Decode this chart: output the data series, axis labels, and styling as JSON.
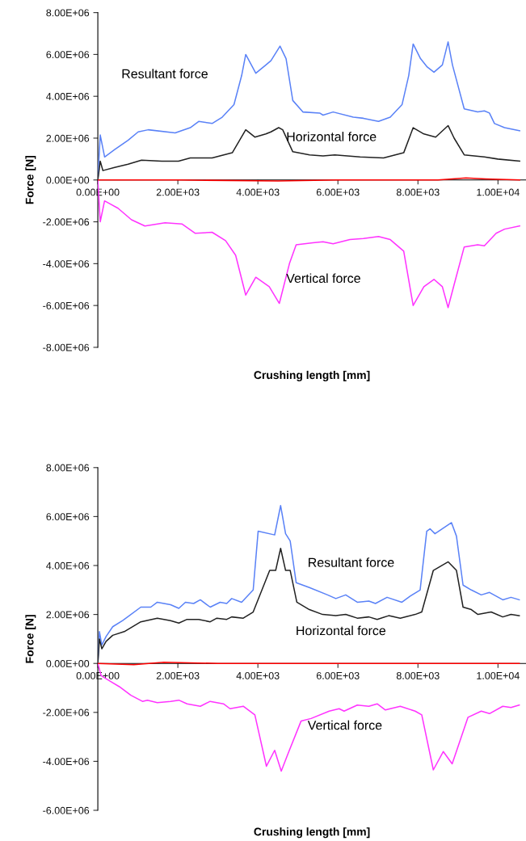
{
  "chart_data": [
    {
      "type": "line",
      "xlabel": "Crushing length [mm]",
      "ylabel": "Force [N]",
      "xlim": [
        0,
        10700
      ],
      "ylim": [
        -8000000.0,
        8000000.0
      ],
      "grid": false,
      "legend": false,
      "marker": "none",
      "line_style": "solid",
      "xticks": [
        {
          "value": 0,
          "label": "0.00E+00"
        },
        {
          "value": 2000,
          "label": "2.00E+03"
        },
        {
          "value": 4000,
          "label": "4.00E+03"
        },
        {
          "value": 6000,
          "label": "6.00E+03"
        },
        {
          "value": 8000,
          "label": "8.00E+03"
        },
        {
          "value": 10000,
          "label": "1.00E+04"
        }
      ],
      "yticks": [
        {
          "value": -8000000.0,
          "label": "-8.00E+06"
        },
        {
          "value": -6000000.0,
          "label": "-6.00E+06"
        },
        {
          "value": -4000000.0,
          "label": "-4.00E+06"
        },
        {
          "value": -2000000.0,
          "label": "-2.00E+06"
        },
        {
          "value": 0,
          "label": "0.00E+00"
        },
        {
          "value": 2000000.0,
          "label": "2.00E+06"
        },
        {
          "value": 4000000.0,
          "label": "4.00E+06"
        },
        {
          "value": 6000000.0,
          "label": "6.00E+06"
        },
        {
          "value": 8000000.0,
          "label": "8.00E+06"
        }
      ],
      "annotations": [
        "Resultant force",
        "Horizontal force",
        "Vertical force"
      ],
      "series": [
        {
          "color": "#5a82f7",
          "x": [
            0,
            60,
            170,
            420,
            756,
            1008,
            1260,
            1932,
            2310,
            2520,
            2856,
            3108,
            3402,
            3595,
            3696,
            3948,
            4200,
            4326,
            4553,
            4704,
            4872,
            5124,
            5544,
            5628,
            5880,
            6384,
            6636,
            7014,
            7308,
            7602,
            7770,
            7880,
            8064,
            8232,
            8400,
            8610,
            8753,
            8862,
            9156,
            9492,
            9660,
            9786,
            9912,
            10164,
            10542
          ],
          "values": [
            0,
            2150000.0,
            1100000.0,
            1450000.0,
            1900000.0,
            2300000.0,
            2400000.0,
            2250000.0,
            2500000.0,
            2800000.0,
            2700000.0,
            3000000.0,
            3600000.0,
            5000000.0,
            6000000.0,
            5100000.0,
            5500000.0,
            5700000.0,
            6400000.0,
            5800000.0,
            3800000.0,
            3250000.0,
            3200000.0,
            3100000.0,
            3250000.0,
            3000000.0,
            2950000.0,
            2800000.0,
            3000000.0,
            3600000.0,
            5000000.0,
            6500000.0,
            5800000.0,
            5400000.0,
            5150000.0,
            5500000.0,
            6600000.0,
            5500000.0,
            3400000.0,
            3250000.0,
            3300000.0,
            3200000.0,
            2700000.0,
            2500000.0,
            2350000.0
          ]
        },
        {
          "color": "#222222",
          "x": [
            0,
            60,
            126,
            420,
            756,
            1092,
            1596,
            2016,
            2310,
            2856,
            3360,
            3696,
            3923,
            4200,
            4326,
            4519,
            4620,
            4872,
            5292,
            5628,
            5922,
            6552,
            7140,
            7644,
            7880,
            8148,
            8442,
            8753,
            8904,
            9156,
            9660,
            9996,
            10542
          ],
          "values": [
            0,
            900000.0,
            450000.0,
            600000.0,
            750000.0,
            950000.0,
            900000.0,
            900000.0,
            1050000.0,
            1050000.0,
            1300000.0,
            2400000.0,
            2050000.0,
            2200000.0,
            2300000.0,
            2500000.0,
            2400000.0,
            1350000.0,
            1200000.0,
            1150000.0,
            1200000.0,
            1100000.0,
            1050000.0,
            1300000.0,
            2500000.0,
            2200000.0,
            2050000.0,
            2600000.0,
            2000000.0,
            1200000.0,
            1100000.0,
            1000000.0,
            900000.0
          ]
        },
        {
          "color": "#ff33ff",
          "x": [
            0,
            60,
            168,
            504,
            840,
            1176,
            1680,
            2100,
            2436,
            2856,
            3192,
            3444,
            3696,
            3948,
            4284,
            4536,
            4788,
            4956,
            5376,
            5628,
            5880,
            6300,
            6636,
            7014,
            7308,
            7644,
            7880,
            8148,
            8400,
            8610,
            8753,
            8904,
            9156,
            9492,
            9660,
            9954,
            10164,
            10542
          ],
          "values": [
            0,
            -2000000.0,
            -1000000.0,
            -1350000.0,
            -1900000.0,
            -2200000.0,
            -2050000.0,
            -2100000.0,
            -2550000.0,
            -2500000.0,
            -2900000.0,
            -3600000.0,
            -5500000.0,
            -4650000.0,
            -5100000.0,
            -5900000.0,
            -4000000.0,
            -3100000.0,
            -3000000.0,
            -2950000.0,
            -3050000.0,
            -2850000.0,
            -2800000.0,
            -2700000.0,
            -2850000.0,
            -3400000.0,
            -6000000.0,
            -5100000.0,
            -4750000.0,
            -5100000.0,
            -6100000.0,
            -5000000.0,
            -3200000.0,
            -3100000.0,
            -3150000.0,
            -2550000.0,
            -2350000.0,
            -2200000.0
          ]
        },
        {
          "color": "#ff0000",
          "x": [
            0,
            2000,
            4500,
            6000,
            8500,
            9200,
            9700,
            10542
          ],
          "values": [
            0,
            0,
            -50000.0,
            0,
            0,
            100000.0,
            50000.0,
            0
          ]
        }
      ]
    },
    {
      "type": "line",
      "xlabel": "Crushing length [mm]",
      "ylabel": "Force [N]",
      "xlim": [
        0,
        10700
      ],
      "ylim": [
        -6000000.0,
        8000000.0
      ],
      "grid": false,
      "legend": false,
      "marker": "none",
      "line_style": "solid",
      "xticks": [
        {
          "value": 0,
          "label": "0.00E+00"
        },
        {
          "value": 2000,
          "label": "2.00E+03"
        },
        {
          "value": 4000,
          "label": "4.00E+03"
        },
        {
          "value": 6000,
          "label": "6.00E+03"
        },
        {
          "value": 8000,
          "label": "8.00E+03"
        },
        {
          "value": 10000,
          "label": "1.00E+04"
        }
      ],
      "yticks": [
        {
          "value": -6000000.0,
          "label": "-6.00E+06"
        },
        {
          "value": -4000000.0,
          "label": "-4.00E+06"
        },
        {
          "value": -2000000.0,
          "label": "-2.00E+06"
        },
        {
          "value": 0,
          "label": "0.00E+00"
        },
        {
          "value": 2000000.0,
          "label": "2.00E+06"
        },
        {
          "value": 4000000.0,
          "label": "4.00E+06"
        },
        {
          "value": 6000000.0,
          "label": "6.00E+06"
        },
        {
          "value": 8000000.0,
          "label": "8.00E+06"
        }
      ],
      "annotations": [
        "Resultant force",
        "Horizontal force",
        "Vertical force"
      ],
      "series": [
        {
          "color": "#5a82f7",
          "x": [
            0,
            40,
            100,
            206,
            372,
            620,
            1074,
            1322,
            1487,
            1817,
            2024,
            2189,
            2395,
            2561,
            2808,
            3056,
            3221,
            3345,
            3593,
            3882,
            4006,
            4419,
            4568,
            4692,
            4807,
            4956,
            5286,
            5741,
            5947,
            6195,
            6484,
            6773,
            6938,
            7228,
            7599,
            7806,
            8054,
            8219,
            8301,
            8425,
            8838,
            8962,
            9127,
            9334,
            9582,
            9788,
            10119,
            10325,
            10532
          ],
          "values": [
            0,
            1300000.0,
            750000.0,
            1100000.0,
            1500000.0,
            1750000.0,
            2300000.0,
            2300000.0,
            2500000.0,
            2400000.0,
            2250000.0,
            2500000.0,
            2450000.0,
            2600000.0,
            2300000.0,
            2500000.0,
            2450000.0,
            2650000.0,
            2500000.0,
            3000000.0,
            5400000.0,
            5250000.0,
            6450000.0,
            5300000.0,
            5000000.0,
            3300000.0,
            3100000.0,
            2800000.0,
            2650000.0,
            2800000.0,
            2500000.0,
            2550000.0,
            2450000.0,
            2700000.0,
            2500000.0,
            2750000.0,
            3000000.0,
            5400000.0,
            5500000.0,
            5300000.0,
            5750000.0,
            5200000.0,
            3200000.0,
            3000000.0,
            2800000.0,
            2900000.0,
            2600000.0,
            2700000.0,
            2600000.0
          ]
        },
        {
          "color": "#222222",
          "x": [
            0,
            40,
            100,
            206,
            372,
            661,
            1074,
            1487,
            1817,
            2024,
            2230,
            2519,
            2808,
            2974,
            3221,
            3345,
            3634,
            3882,
            4295,
            4444,
            4568,
            4692,
            4807,
            4973,
            5286,
            5617,
            5947,
            6195,
            6484,
            6773,
            6980,
            7269,
            7558,
            7930,
            8095,
            8384,
            8756,
            8962,
            9127,
            9334,
            9499,
            9829,
            10119,
            10325,
            10532
          ],
          "values": [
            0,
            1000000.0,
            600000.0,
            900000.0,
            1150000.0,
            1300000.0,
            1700000.0,
            1850000.0,
            1750000.0,
            1650000.0,
            1800000.0,
            1800000.0,
            1700000.0,
            1850000.0,
            1800000.0,
            1900000.0,
            1850000.0,
            2100000.0,
            3800000.0,
            3800000.0,
            4700000.0,
            3800000.0,
            3800000.0,
            2500000.0,
            2200000.0,
            2000000.0,
            1950000.0,
            2000000.0,
            1850000.0,
            1900000.0,
            1800000.0,
            1950000.0,
            1850000.0,
            2000000.0,
            2100000.0,
            3800000.0,
            4150000.0,
            3800000.0,
            2300000.0,
            2200000.0,
            2000000.0,
            2100000.0,
            1900000.0,
            2000000.0,
            1950000.0
          ]
        },
        {
          "color": "#ff33ff",
          "x": [
            0,
            83,
            330,
            537,
            826,
            1115,
            1239,
            1487,
            1817,
            2024,
            2230,
            2561,
            2808,
            3139,
            3304,
            3634,
            3924,
            4213,
            4419,
            4584,
            4750,
            5080,
            5328,
            5782,
            6030,
            6154,
            6484,
            6773,
            6980,
            7186,
            7558,
            7930,
            8095,
            8384,
            8632,
            8855,
            9251,
            9582,
            9788,
            10119,
            10325,
            10532
          ],
          "values": [
            0,
            -500000.0,
            -750000.0,
            -950000.0,
            -1300000.0,
            -1550000.0,
            -1500000.0,
            -1600000.0,
            -1550000.0,
            -1500000.0,
            -1650000.0,
            -1750000.0,
            -1550000.0,
            -1650000.0,
            -1850000.0,
            -1750000.0,
            -2100000.0,
            -4200000.0,
            -3550000.0,
            -4400000.0,
            -3700000.0,
            -2350000.0,
            -2250000.0,
            -1950000.0,
            -1850000.0,
            -1950000.0,
            -1700000.0,
            -1750000.0,
            -1650000.0,
            -1900000.0,
            -1750000.0,
            -1950000.0,
            -2100000.0,
            -4350000.0,
            -3600000.0,
            -4100000.0,
            -2200000.0,
            -1950000.0,
            -2050000.0,
            -1750000.0,
            -1800000.0,
            -1700000.0
          ]
        },
        {
          "color": "#ff0000",
          "x": [
            0,
            900,
            1650,
            3000,
            6000,
            9000,
            10532
          ],
          "values": [
            0,
            -50000.0,
            50000.0,
            0,
            0,
            0,
            0
          ]
        }
      ]
    }
  ]
}
